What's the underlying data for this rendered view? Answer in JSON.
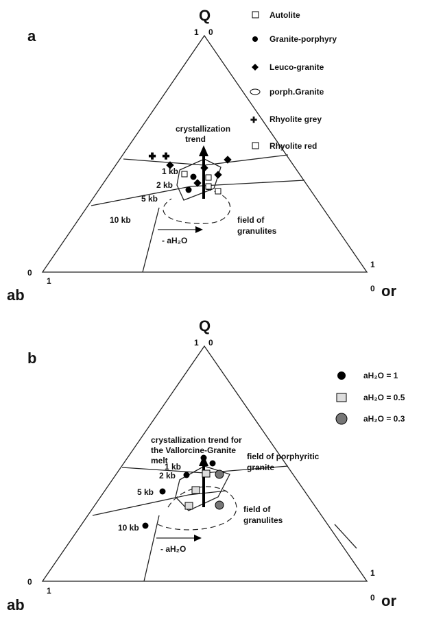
{
  "panel_a": {
    "label": "a",
    "apex": "Q",
    "apex_left": "1",
    "apex_right": "0",
    "left": "ab",
    "right": "or",
    "left_one": "1",
    "left_zero": "0",
    "right_zero": "0",
    "right_one": "1",
    "legend": [
      "Autolite",
      "Granite-porphyry",
      "Leuco-granite",
      "porph.Granite",
      "Rhyolite grey",
      "Rhyolite red"
    ],
    "trend": [
      "crystallization",
      "trend"
    ],
    "pressures": [
      "1 kb",
      "2 kb",
      "5 kb",
      "10 kb"
    ],
    "field": [
      "field of",
      "granulites"
    ],
    "arrow": "- aH₂O"
  },
  "panel_b": {
    "label": "b",
    "apex": "Q",
    "apex_left": "1",
    "apex_right": "0",
    "left": "ab",
    "right": "or",
    "left_one": "1",
    "left_zero": "0",
    "right_zero": "0",
    "right_one": "1",
    "legend": [
      "aH₂O = 1",
      "aH₂O = 0.5",
      "aH₂O = 0.3"
    ],
    "trend": [
      "crystallization trend for",
      "the Vallorcine-Granite",
      "melt"
    ],
    "porph": [
      "field of porphyritic",
      "granite"
    ],
    "pressures": [
      "1 kb",
      "2 kb",
      "5 kb",
      "10 kb"
    ],
    "field": [
      "field of",
      "granulites"
    ],
    "arrow": "- aH₂O"
  }
}
